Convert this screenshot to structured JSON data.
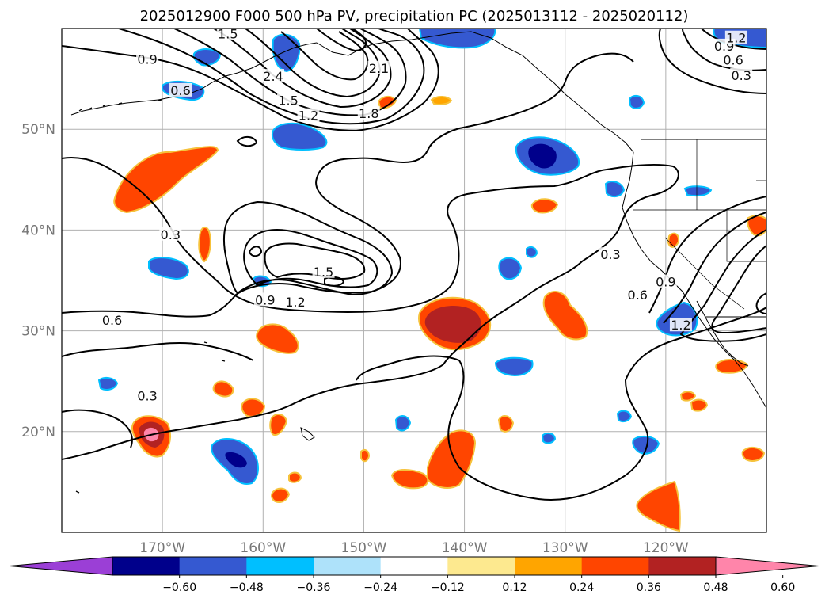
{
  "title": "2025012900 F000 500 hPa PV, precipitation PC (2025013112 - 2025020112)",
  "map": {
    "lon_range": [
      -180,
      -110
    ],
    "lat_range": [
      10,
      60
    ],
    "lon_ticks": [
      {
        "lon": -170,
        "label": "170°W"
      },
      {
        "lon": -160,
        "label": "160°W"
      },
      {
        "lon": -150,
        "label": "150°W"
      },
      {
        "lon": -140,
        "label": "140°W"
      },
      {
        "lon": -130,
        "label": "130°W"
      },
      {
        "lon": -120,
        "label": "120°W"
      }
    ],
    "lat_ticks": [
      {
        "lat": 20,
        "label": "20°N"
      },
      {
        "lat": 30,
        "label": "30°N"
      },
      {
        "lat": 40,
        "label": "40°N"
      },
      {
        "lat": 50,
        "label": "50°N"
      }
    ],
    "gridlines": true
  },
  "colorbar": {
    "ticks": [
      "−0.60",
      "−0.48",
      "−0.36",
      "−0.24",
      "−0.12",
      "0.12",
      "0.24",
      "0.36",
      "0.48",
      "0.60"
    ],
    "colors": [
      "#9b3fd6",
      "#00008b",
      "#3559d1",
      "#00bfff",
      "#aee2fa",
      "#ffffff",
      "#fde98f",
      "#ffa500",
      "#ff4500",
      "#b22222",
      "#ff85aa"
    ],
    "extend": "both"
  },
  "contour_labels": [
    {
      "text": "0.9",
      "lon": -171.5,
      "lat": 56.9
    },
    {
      "text": "0.6",
      "lon": -168.2,
      "lat": 53.8
    },
    {
      "text": "1.5",
      "lon": -157.5,
      "lat": 52.8
    },
    {
      "text": "1.2",
      "lon": -155.5,
      "lat": 51.3
    },
    {
      "text": "1.8",
      "lon": -149.5,
      "lat": 51.5
    },
    {
      "text": "2.4",
      "lon": -159.0,
      "lat": 55.2
    },
    {
      "text": "2.1",
      "lon": -148.5,
      "lat": 56.0
    },
    {
      "text": "1.5",
      "lon": -163.5,
      "lat": 59.4
    },
    {
      "text": "0.9",
      "lon": -114.2,
      "lat": 58.2
    },
    {
      "text": "0.6",
      "lon": -113.3,
      "lat": 56.8
    },
    {
      "text": "0.3",
      "lon": -112.5,
      "lat": 55.3
    },
    {
      "text": "1.2",
      "lon": -113.0,
      "lat": 59.0
    },
    {
      "text": "0.3",
      "lon": -169.2,
      "lat": 39.5
    },
    {
      "text": "1.5",
      "lon": -154.0,
      "lat": 35.8
    },
    {
      "text": "1.2",
      "lon": -156.8,
      "lat": 32.8
    },
    {
      "text": "0.9",
      "lon": -159.8,
      "lat": 33.0
    },
    {
      "text": "0.6",
      "lon": -175.0,
      "lat": 31.0
    },
    {
      "text": "0.3",
      "lon": -125.5,
      "lat": 37.5
    },
    {
      "text": "0.6",
      "lon": -122.8,
      "lat": 33.5
    },
    {
      "text": "0.9",
      "lon": -120.0,
      "lat": 34.8
    },
    {
      "text": "1.2",
      "lon": -118.5,
      "lat": 30.5
    },
    {
      "text": "0.3",
      "lon": -171.5,
      "lat": 23.5
    }
  ]
}
